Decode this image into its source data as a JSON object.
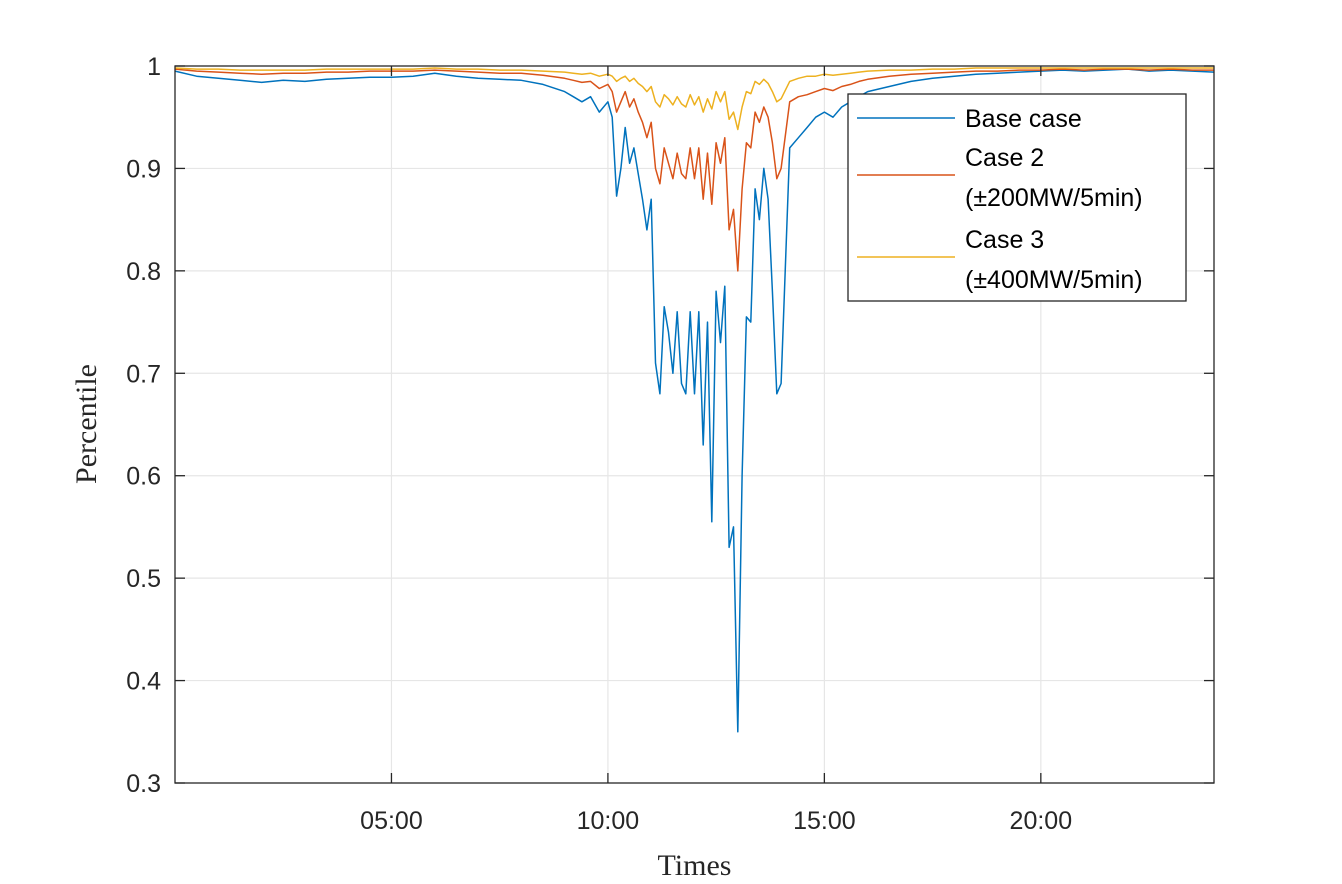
{
  "chart_data": {
    "type": "line",
    "title": "",
    "xlabel": "Times",
    "ylabel": "Percentile",
    "ylim": [
      0.3,
      1.0
    ],
    "xlim_hours": [
      0.0,
      24.0
    ],
    "grid": true,
    "legend_position": "top-right",
    "y_ticks": [
      "0.3",
      "0.4",
      "0.5",
      "0.6",
      "0.7",
      "0.8",
      "0.9",
      "1"
    ],
    "y_tick_values": [
      0.3,
      0.4,
      0.5,
      0.6,
      0.7,
      0.8,
      0.9,
      1.0
    ],
    "x_ticks": [
      "05:00",
      "10:00",
      "15:00",
      "20:00"
    ],
    "x_tick_values_hours": [
      5,
      10,
      15,
      20
    ],
    "series": [
      {
        "name": "Base case",
        "color": "#0072BD",
        "x_hours": [
          0.0,
          0.5,
          1.0,
          1.5,
          2.0,
          2.5,
          3.0,
          3.5,
          4.0,
          4.5,
          5.0,
          5.5,
          6.0,
          6.5,
          7.0,
          7.5,
          8.0,
          8.5,
          9.0,
          9.2,
          9.4,
          9.6,
          9.8,
          10.0,
          10.1,
          10.2,
          10.3,
          10.4,
          10.5,
          10.6,
          10.7,
          10.8,
          10.9,
          11.0,
          11.1,
          11.2,
          11.3,
          11.4,
          11.5,
          11.6,
          11.7,
          11.8,
          11.9,
          12.0,
          12.1,
          12.2,
          12.3,
          12.4,
          12.5,
          12.6,
          12.7,
          12.8,
          12.9,
          13.0,
          13.1,
          13.2,
          13.3,
          13.4,
          13.5,
          13.6,
          13.7,
          13.8,
          13.9,
          14.0,
          14.2,
          14.4,
          14.6,
          14.8,
          15.0,
          15.2,
          15.4,
          15.6,
          15.8,
          16.0,
          16.5,
          17.0,
          17.5,
          18.0,
          18.5,
          19.0,
          19.5,
          20.0,
          20.5,
          21.0,
          21.5,
          22.0,
          22.5,
          23.0,
          23.5,
          24.0
        ],
        "y": [
          0.995,
          0.99,
          0.988,
          0.986,
          0.984,
          0.986,
          0.985,
          0.987,
          0.988,
          0.989,
          0.989,
          0.99,
          0.993,
          0.99,
          0.988,
          0.987,
          0.986,
          0.982,
          0.975,
          0.97,
          0.965,
          0.97,
          0.955,
          0.965,
          0.95,
          0.873,
          0.9,
          0.94,
          0.905,
          0.92,
          0.895,
          0.87,
          0.84,
          0.87,
          0.71,
          0.68,
          0.765,
          0.74,
          0.7,
          0.76,
          0.69,
          0.68,
          0.76,
          0.68,
          0.76,
          0.63,
          0.75,
          0.555,
          0.78,
          0.73,
          0.785,
          0.53,
          0.55,
          0.35,
          0.6,
          0.755,
          0.75,
          0.88,
          0.85,
          0.9,
          0.87,
          0.78,
          0.68,
          0.69,
          0.92,
          0.93,
          0.94,
          0.95,
          0.955,
          0.95,
          0.96,
          0.965,
          0.97,
          0.975,
          0.98,
          0.985,
          0.988,
          0.99,
          0.992,
          0.993,
          0.994,
          0.995,
          0.996,
          0.995,
          0.996,
          0.997,
          0.995,
          0.996,
          0.995,
          0.994
        ]
      },
      {
        "name": "Case 2\n(±200MW/5min)",
        "color": "#D95319",
        "x_hours": [
          0.0,
          0.5,
          1.0,
          1.5,
          2.0,
          2.5,
          3.0,
          3.5,
          4.0,
          4.5,
          5.0,
          5.5,
          6.0,
          6.5,
          7.0,
          7.5,
          8.0,
          8.5,
          9.0,
          9.2,
          9.4,
          9.6,
          9.8,
          10.0,
          10.1,
          10.2,
          10.3,
          10.4,
          10.5,
          10.6,
          10.7,
          10.8,
          10.9,
          11.0,
          11.1,
          11.2,
          11.3,
          11.4,
          11.5,
          11.6,
          11.7,
          11.8,
          11.9,
          12.0,
          12.1,
          12.2,
          12.3,
          12.4,
          12.5,
          12.6,
          12.7,
          12.8,
          12.9,
          13.0,
          13.1,
          13.2,
          13.3,
          13.4,
          13.5,
          13.6,
          13.7,
          13.8,
          13.9,
          14.0,
          14.2,
          14.4,
          14.6,
          14.8,
          15.0,
          15.2,
          15.4,
          15.6,
          15.8,
          16.0,
          16.5,
          17.0,
          17.5,
          18.0,
          18.5,
          19.0,
          19.5,
          20.0,
          20.5,
          21.0,
          21.5,
          22.0,
          22.5,
          23.0,
          23.5,
          24.0
        ],
        "y": [
          0.997,
          0.995,
          0.994,
          0.993,
          0.992,
          0.993,
          0.993,
          0.994,
          0.994,
          0.995,
          0.995,
          0.995,
          0.996,
          0.995,
          0.994,
          0.993,
          0.993,
          0.991,
          0.988,
          0.986,
          0.984,
          0.985,
          0.978,
          0.982,
          0.975,
          0.955,
          0.965,
          0.975,
          0.96,
          0.968,
          0.955,
          0.945,
          0.93,
          0.945,
          0.9,
          0.885,
          0.92,
          0.905,
          0.89,
          0.915,
          0.895,
          0.89,
          0.92,
          0.89,
          0.92,
          0.87,
          0.915,
          0.865,
          0.925,
          0.905,
          0.93,
          0.84,
          0.86,
          0.8,
          0.88,
          0.925,
          0.92,
          0.955,
          0.945,
          0.96,
          0.95,
          0.925,
          0.89,
          0.9,
          0.965,
          0.97,
          0.972,
          0.975,
          0.978,
          0.976,
          0.98,
          0.982,
          0.985,
          0.987,
          0.99,
          0.992,
          0.993,
          0.994,
          0.995,
          0.995,
          0.996,
          0.996,
          0.997,
          0.996,
          0.997,
          0.997,
          0.996,
          0.997,
          0.996,
          0.996
        ]
      },
      {
        "name": "Case 3\n(±400MW/5min)",
        "color": "#EDB120",
        "x_hours": [
          0.0,
          0.5,
          1.0,
          1.5,
          2.0,
          2.5,
          3.0,
          3.5,
          4.0,
          4.5,
          5.0,
          5.5,
          6.0,
          6.5,
          7.0,
          7.5,
          8.0,
          8.5,
          9.0,
          9.2,
          9.4,
          9.6,
          9.8,
          10.0,
          10.1,
          10.2,
          10.3,
          10.4,
          10.5,
          10.6,
          10.7,
          10.8,
          10.9,
          11.0,
          11.1,
          11.2,
          11.3,
          11.4,
          11.5,
          11.6,
          11.7,
          11.8,
          11.9,
          12.0,
          12.1,
          12.2,
          12.3,
          12.4,
          12.5,
          12.6,
          12.7,
          12.8,
          12.9,
          13.0,
          13.1,
          13.2,
          13.3,
          13.4,
          13.5,
          13.6,
          13.7,
          13.8,
          13.9,
          14.0,
          14.2,
          14.4,
          14.6,
          14.8,
          15.0,
          15.2,
          15.4,
          15.6,
          15.8,
          16.0,
          16.5,
          17.0,
          17.5,
          18.0,
          18.5,
          19.0,
          19.5,
          20.0,
          20.5,
          21.0,
          21.5,
          22.0,
          22.5,
          23.0,
          23.5,
          24.0
        ],
        "y": [
          0.998,
          0.997,
          0.997,
          0.996,
          0.996,
          0.996,
          0.996,
          0.997,
          0.997,
          0.997,
          0.997,
          0.997,
          0.998,
          0.997,
          0.997,
          0.996,
          0.996,
          0.995,
          0.994,
          0.993,
          0.992,
          0.993,
          0.99,
          0.992,
          0.99,
          0.985,
          0.988,
          0.99,
          0.985,
          0.988,
          0.983,
          0.98,
          0.975,
          0.98,
          0.965,
          0.96,
          0.972,
          0.968,
          0.962,
          0.97,
          0.963,
          0.96,
          0.972,
          0.962,
          0.97,
          0.955,
          0.968,
          0.958,
          0.975,
          0.965,
          0.975,
          0.948,
          0.955,
          0.938,
          0.96,
          0.975,
          0.973,
          0.985,
          0.982,
          0.987,
          0.983,
          0.975,
          0.965,
          0.968,
          0.985,
          0.988,
          0.99,
          0.99,
          0.992,
          0.991,
          0.992,
          0.993,
          0.994,
          0.995,
          0.996,
          0.996,
          0.997,
          0.997,
          0.998,
          0.998,
          0.998,
          0.998,
          0.998,
          0.998,
          0.998,
          0.998,
          0.998,
          0.998,
          0.998,
          0.998
        ]
      }
    ]
  }
}
